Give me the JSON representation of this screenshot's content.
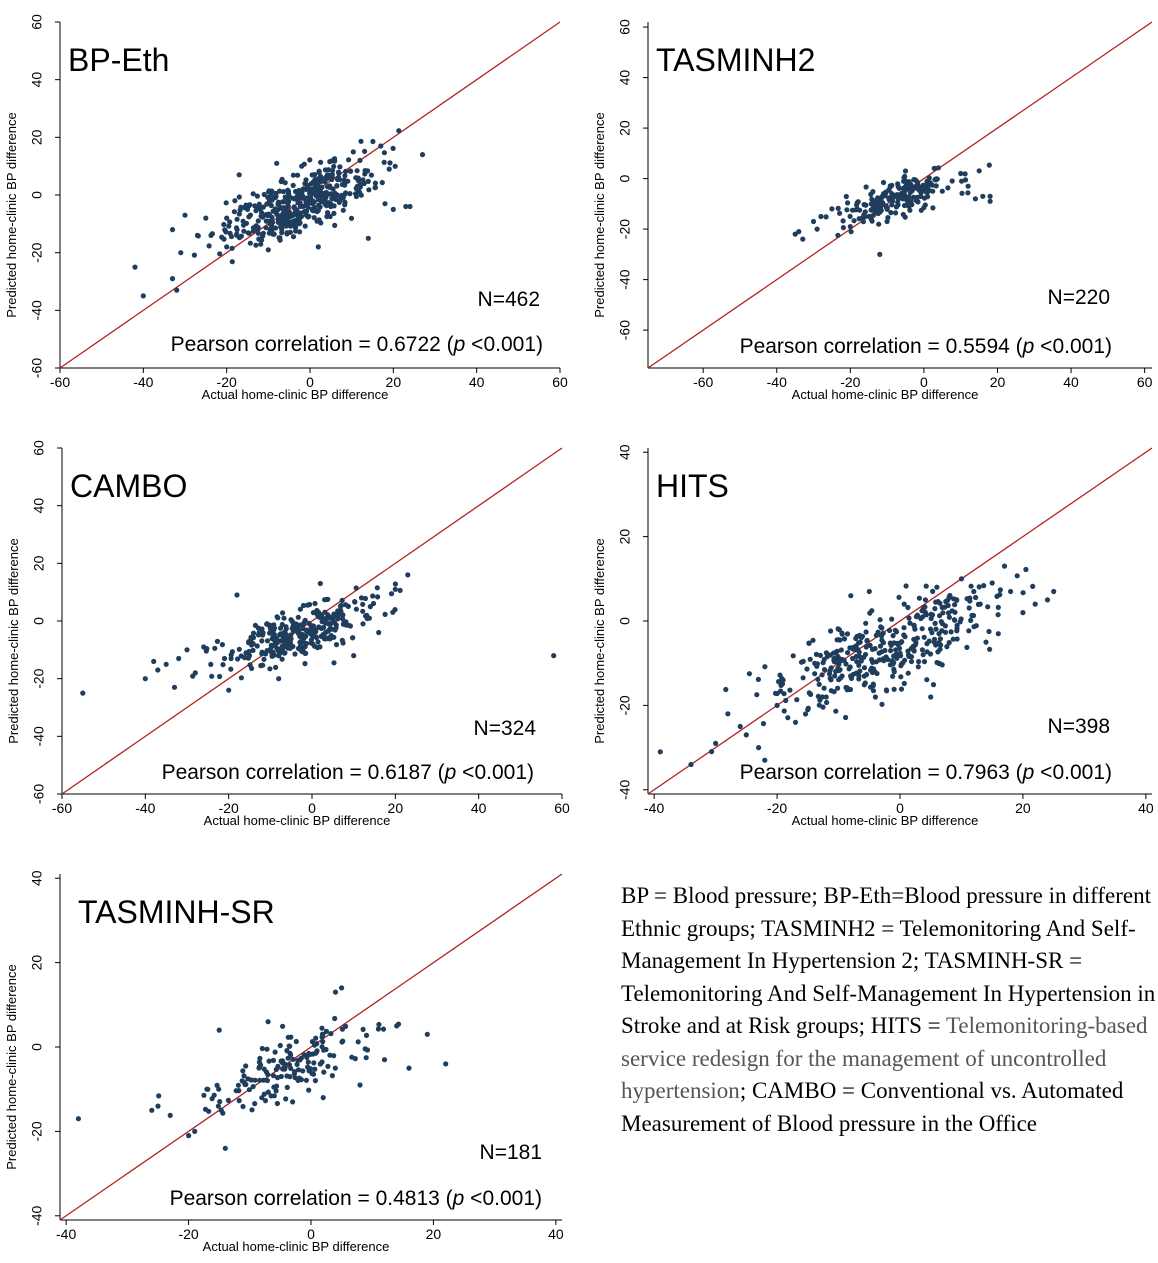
{
  "chart_data": [
    {
      "type": "scatter",
      "title": "BP-Eth",
      "xlabel": "Actual home-clinic BP difference",
      "ylabel": "Predicted home-clinic BP difference",
      "xlim": [
        -60,
        60
      ],
      "ylim": [
        -60,
        60
      ],
      "xticks": [
        -60,
        -40,
        -20,
        0,
        20,
        40,
        60
      ],
      "yticks": [
        -60,
        -40,
        -20,
        0,
        20,
        40,
        60
      ],
      "n_label": "N=462",
      "corr_prefix": "Pearson correlation = 0.6722 (",
      "corr_p": "p",
      "corr_suffix": " <0.001)",
      "reference_line": "y = x",
      "cluster": {
        "mean_x": -3,
        "mean_y": -3,
        "sd_x": 9,
        "sd_y": 7,
        "n": 462
      },
      "points": [
        [
          -42,
          -25
        ],
        [
          -40,
          -35
        ],
        [
          -33,
          -29
        ],
        [
          -32,
          -33
        ],
        [
          -31,
          -20
        ],
        [
          -33,
          -12
        ],
        [
          -30,
          -7
        ],
        [
          -27,
          -14
        ],
        [
          -25,
          -8
        ],
        [
          -20,
          -8
        ],
        [
          -17,
          7
        ],
        [
          -15,
          -5
        ],
        [
          -8,
          11
        ],
        [
          -2,
          10
        ],
        [
          5,
          -3
        ],
        [
          8,
          -1
        ],
        [
          11,
          6
        ],
        [
          12,
          12
        ],
        [
          14,
          -15
        ],
        [
          18,
          -3
        ],
        [
          19,
          9
        ],
        [
          20,
          -5
        ],
        [
          23,
          -4
        ],
        [
          24,
          -4
        ],
        [
          27,
          14
        ],
        [
          17,
          17
        ],
        [
          13,
          4
        ],
        [
          2,
          -18
        ],
        [
          -10,
          -19
        ],
        [
          -20,
          -18
        ]
      ]
    },
    {
      "type": "scatter",
      "title": "TASMINH2",
      "xlabel": "Actual home-clinic BP difference",
      "ylabel": "Predicted home-clinic BP difference",
      "xlim": [
        -75,
        62
      ],
      "ylim": [
        -75,
        62
      ],
      "xticks": [
        -60,
        -40,
        -20,
        0,
        20,
        40,
        60
      ],
      "yticks": [
        -60,
        -40,
        -20,
        0,
        20,
        40,
        60
      ],
      "n_label": "N=220",
      "corr_prefix": "Pearson correlation = 0.5594 (",
      "corr_p": "p",
      "corr_suffix": " <0.001)",
      "reference_line": "y = x",
      "cluster": {
        "mean_x": -8,
        "mean_y": -8,
        "sd_x": 8,
        "sd_y": 5,
        "n": 220
      },
      "points": [
        [
          -35,
          -22
        ],
        [
          -34,
          -21
        ],
        [
          -30,
          -17
        ],
        [
          -28,
          -15
        ],
        [
          -25,
          -12
        ],
        [
          -20,
          -19
        ],
        [
          -16,
          -15
        ],
        [
          -12,
          -30
        ],
        [
          -10,
          -17
        ],
        [
          5,
          -5
        ],
        [
          10,
          2
        ],
        [
          12,
          -3
        ],
        [
          14,
          -8
        ],
        [
          16,
          -7
        ],
        [
          18,
          -9
        ],
        [
          18,
          -7
        ],
        [
          3,
          4
        ],
        [
          -5,
          3
        ]
      ]
    },
    {
      "type": "scatter",
      "title": "CAMBO",
      "xlabel": "Actual home-clinic BP difference",
      "ylabel": "Predicted home-clinic BP difference",
      "xlim": [
        -60,
        60
      ],
      "ylim": [
        -60,
        60
      ],
      "xticks": [
        -60,
        -40,
        -20,
        0,
        20,
        40,
        60
      ],
      "yticks": [
        -60,
        -40,
        -20,
        0,
        20,
        40,
        60
      ],
      "n_label": "N=324",
      "corr_prefix": "Pearson correlation = 0.6187 (",
      "corr_p": "p",
      "corr_suffix": " <0.001)",
      "reference_line": "y = x",
      "cluster": {
        "mean_x": -3,
        "mean_y": -4,
        "sd_x": 9,
        "sd_y": 6,
        "n": 324
      },
      "points": [
        [
          -55,
          -25
        ],
        [
          -40,
          -20
        ],
        [
          -38,
          -14
        ],
        [
          -37,
          -17
        ],
        [
          -35,
          -15
        ],
        [
          -33,
          -23
        ],
        [
          -32,
          -13
        ],
        [
          -30,
          -10
        ],
        [
          -28,
          -18
        ],
        [
          -26,
          -9
        ],
        [
          -21,
          -13
        ],
        [
          -20,
          -24
        ],
        [
          -18,
          9
        ],
        [
          -15,
          -12
        ],
        [
          -8,
          -20
        ],
        [
          2,
          13
        ],
        [
          10,
          -12
        ],
        [
          14,
          5
        ],
        [
          16,
          -4
        ],
        [
          20,
          11
        ],
        [
          23,
          16
        ],
        [
          58,
          -12
        ]
      ]
    },
    {
      "type": "scatter",
      "title": "HITS",
      "xlabel": "Actual home-clinic BP difference",
      "ylabel": "Predicted home-clinic BP difference",
      "xlim": [
        -41,
        41
      ],
      "ylim": [
        -41,
        41
      ],
      "xticks": [
        -40,
        -20,
        0,
        20,
        40
      ],
      "yticks": [
        -40,
        -20,
        0,
        20,
        40
      ],
      "n_label": "N=398",
      "corr_prefix": "Pearson correlation = 0.7963 (",
      "corr_p": "p",
      "corr_suffix": " <0.001)",
      "reference_line": "y = x",
      "cluster": {
        "mean_x": -2,
        "mean_y": -6,
        "sd_x": 9,
        "sd_y": 7,
        "n": 398
      },
      "points": [
        [
          -39,
          -31
        ],
        [
          -34,
          -34
        ],
        [
          -30,
          -29
        ],
        [
          -28,
          -22
        ],
        [
          -26,
          -25
        ],
        [
          -25,
          -27
        ],
        [
          -23,
          -30
        ],
        [
          -22,
          -33
        ],
        [
          -20,
          -20
        ],
        [
          -17,
          -24
        ],
        [
          -15,
          -21
        ],
        [
          -12,
          -18
        ],
        [
          -4,
          -18
        ],
        [
          -5,
          7
        ],
        [
          -8,
          6
        ],
        [
          5,
          -18
        ],
        [
          6,
          8
        ],
        [
          10,
          10
        ],
        [
          12,
          7
        ],
        [
          15,
          9
        ],
        [
          17,
          13
        ],
        [
          18,
          7
        ],
        [
          20,
          2
        ],
        [
          22,
          4
        ],
        [
          25,
          7
        ],
        [
          24,
          5
        ],
        [
          14,
          -5
        ],
        [
          16,
          -3
        ]
      ]
    },
    {
      "type": "scatter",
      "title": "TASMINH-SR",
      "xlabel": "Actual home-clinic BP difference",
      "ylabel": "Predicted home-clinic BP difference",
      "xlim": [
        -41,
        41
      ],
      "ylim": [
        -41,
        41
      ],
      "xticks": [
        -40,
        -20,
        0,
        20,
        40
      ],
      "yticks": [
        -40,
        -20,
        0,
        20,
        40
      ],
      "n_label": "N=181",
      "corr_prefix": "Pearson correlation = 0.4813 (",
      "corr_p": "p",
      "corr_suffix": " <0.001)",
      "reference_line": "y = x",
      "cluster": {
        "mean_x": -4,
        "mean_y": -5,
        "sd_x": 7,
        "sd_y": 5,
        "n": 181
      },
      "points": [
        [
          -38,
          -17
        ],
        [
          -26,
          -15
        ],
        [
          -25,
          -14
        ],
        [
          -20,
          -21
        ],
        [
          -19,
          -20
        ],
        [
          -17,
          -10
        ],
        [
          -14,
          -24
        ],
        [
          -15,
          4
        ],
        [
          -7,
          6
        ],
        [
          4,
          13
        ],
        [
          5,
          14
        ],
        [
          8,
          -9
        ],
        [
          12,
          -3
        ],
        [
          14,
          5
        ],
        [
          16,
          -5
        ],
        [
          19,
          3
        ],
        [
          22,
          -4
        ],
        [
          2,
          -12
        ],
        [
          -3,
          -13
        ]
      ]
    }
  ],
  "caption": {
    "dark1": "BP = Blood pressure; BP-Eth=Blood pressure in different Ethnic groups; TASMINH2 = Telemonitoring And Self-Management In Hypertension 2; TASMINH-SR = Telemonitoring And Self-Management In Hypertension in Stroke and at Risk groups; HITS = ",
    "gray": "Telemonitoring-based service redesign for the management of uncontrolled hypertension",
    "dark2": "; CAMBO = Conventional vs. Automated Measurement of Blood pressure in the Office"
  },
  "colors": {
    "points": "#1f3d5c",
    "reference_line": "#b22222",
    "axis": "#000000"
  }
}
